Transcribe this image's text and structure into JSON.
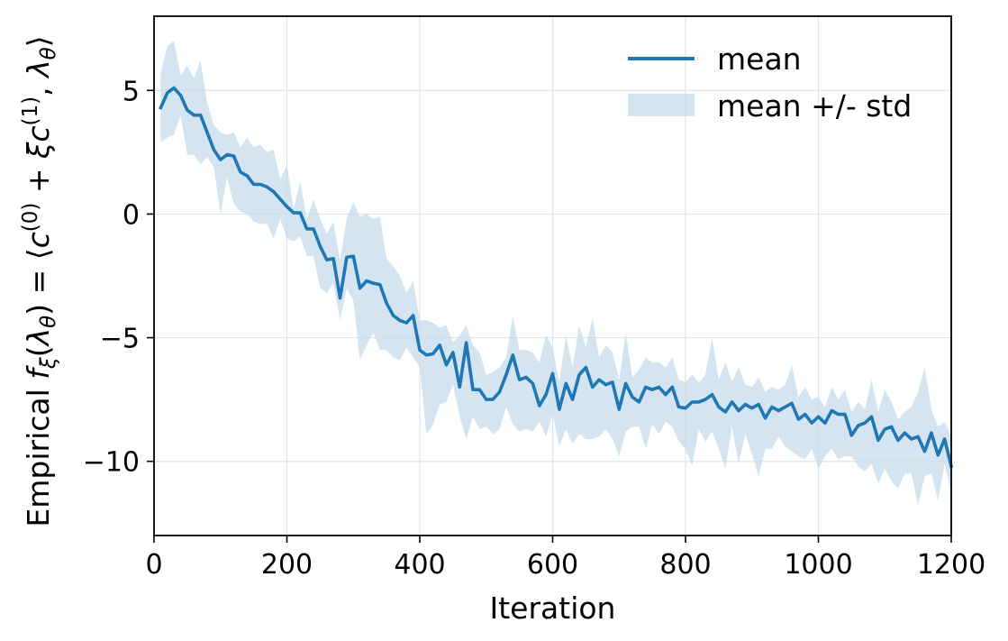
{
  "chart_data": {
    "type": "line",
    "title": "",
    "xlabel": "Iteration",
    "ylabel_parts": {
      "prefix": "Empirical ",
      "f": "f",
      "f_sub": "ξ",
      "paren_open": "(",
      "lambda": "λ",
      "lambda_sub": "θ",
      "paren_close": ") = ⟨",
      "c0": "c",
      "c0_sup": "(0)",
      "plus": " + ",
      "xi": "ξ",
      "c1": "c",
      "c1_sup": "(1)",
      "comma": ", ",
      "lambda2": "λ",
      "lambda2_sub": "θ",
      "close": "⟩"
    },
    "xlim": [
      0,
      1200
    ],
    "ylim": [
      -13,
      8
    ],
    "xticks": [
      0,
      200,
      400,
      600,
      800,
      1000,
      1200
    ],
    "xtick_labels": [
      "0",
      "200",
      "400",
      "600",
      "800",
      "1000",
      "1200"
    ],
    "yticks": [
      5,
      0,
      -5,
      -10
    ],
    "ytick_labels": [
      "5",
      "0",
      "−5",
      "−10"
    ],
    "grid": true,
    "legend_position": "top-right",
    "color": "#1f77b4",
    "band_color": "#c6dcec",
    "series": [
      {
        "name": "mean",
        "x": [
          10,
          20,
          30,
          40,
          50,
          60,
          70,
          80,
          90,
          100,
          110,
          120,
          130,
          140,
          150,
          160,
          170,
          180,
          190,
          200,
          210,
          220,
          230,
          240,
          250,
          260,
          270,
          280,
          290,
          300,
          310,
          320,
          330,
          340,
          350,
          360,
          370,
          380,
          390,
          400,
          410,
          420,
          430,
          440,
          450,
          460,
          470,
          480,
          490,
          500,
          510,
          520,
          530,
          540,
          550,
          560,
          570,
          580,
          590,
          600,
          610,
          620,
          630,
          640,
          650,
          660,
          670,
          680,
          690,
          700,
          710,
          720,
          730,
          740,
          750,
          760,
          770,
          780,
          790,
          800,
          810,
          820,
          830,
          840,
          850,
          860,
          870,
          880,
          890,
          900,
          910,
          920,
          930,
          940,
          950,
          960,
          970,
          980,
          990,
          1000,
          1010,
          1020,
          1030,
          1040,
          1050,
          1060,
          1070,
          1080,
          1090,
          1100,
          1110,
          1120,
          1130,
          1140,
          1150,
          1160,
          1170,
          1180,
          1190,
          1200
        ],
        "values": [
          4.3,
          4.9,
          5.1,
          4.8,
          4.2,
          4.0,
          4.0,
          3.3,
          2.6,
          2.2,
          2.4,
          2.35,
          1.7,
          1.55,
          1.2,
          1.2,
          1.1,
          0.9,
          0.6,
          0.3,
          0.05,
          0.05,
          -0.6,
          -0.6,
          -1.3,
          -1.85,
          -1.8,
          -3.4,
          -1.75,
          -1.7,
          -3.0,
          -2.7,
          -2.8,
          -2.85,
          -3.6,
          -4.1,
          -4.3,
          -4.4,
          -4.1,
          -5.5,
          -5.7,
          -5.65,
          -5.3,
          -6.1,
          -5.6,
          -7.0,
          -5.2,
          -7.1,
          -7.1,
          -7.5,
          -7.5,
          -7.2,
          -6.5,
          -5.7,
          -6.7,
          -6.6,
          -6.85,
          -7.75,
          -7.3,
          -6.45,
          -7.9,
          -6.85,
          -7.5,
          -6.5,
          -6.2,
          -7.0,
          -6.7,
          -6.9,
          -6.8,
          -7.9,
          -6.85,
          -7.4,
          -7.6,
          -7.0,
          -7.1,
          -7.0,
          -7.3,
          -7.0,
          -7.8,
          -7.85,
          -7.6,
          -7.6,
          -7.5,
          -7.3,
          -7.8,
          -8.0,
          -7.6,
          -7.95,
          -7.7,
          -7.85,
          -7.7,
          -8.25,
          -7.8,
          -7.95,
          -7.8,
          -7.65,
          -8.3,
          -8.1,
          -8.45,
          -8.2,
          -8.45,
          -7.95,
          -8.1,
          -8.1,
          -8.95,
          -8.55,
          -8.45,
          -8.2,
          -9.15,
          -8.7,
          -8.6,
          -9.15,
          -8.85,
          -9.1,
          -9.0,
          -9.6,
          -8.85,
          -9.75,
          -9.1,
          -10.2
        ]
      },
      {
        "name": "mean +/- std",
        "x": [
          10,
          20,
          30,
          40,
          50,
          60,
          70,
          80,
          90,
          100,
          110,
          120,
          130,
          140,
          150,
          160,
          170,
          180,
          190,
          200,
          210,
          220,
          230,
          240,
          250,
          260,
          270,
          280,
          290,
          300,
          310,
          320,
          330,
          340,
          350,
          360,
          370,
          380,
          390,
          400,
          410,
          420,
          430,
          440,
          450,
          460,
          470,
          480,
          490,
          500,
          510,
          520,
          530,
          540,
          550,
          560,
          570,
          580,
          590,
          600,
          610,
          620,
          630,
          640,
          650,
          660,
          670,
          680,
          690,
          700,
          710,
          720,
          730,
          740,
          750,
          760,
          770,
          780,
          790,
          800,
          810,
          820,
          830,
          840,
          850,
          860,
          870,
          880,
          890,
          900,
          910,
          920,
          930,
          940,
          950,
          960,
          970,
          980,
          990,
          1000,
          1010,
          1020,
          1030,
          1040,
          1050,
          1060,
          1070,
          1080,
          1090,
          1100,
          1110,
          1120,
          1130,
          1140,
          1150,
          1160,
          1170,
          1180,
          1190,
          1200
        ],
        "upper": [
          5.7,
          6.8,
          7.0,
          5.6,
          6.0,
          5.5,
          6.2,
          4.5,
          3.6,
          3.3,
          3.2,
          3.3,
          2.7,
          3.1,
          2.7,
          2.8,
          2.5,
          2.6,
          1.4,
          2.0,
          0.2,
          1.3,
          -0.2,
          0.6,
          -0.2,
          -0.8,
          -0.3,
          -1.9,
          -0.2,
          0.5,
          -0.1,
          0.0,
          -0.2,
          -0.1,
          -1.8,
          -2.1,
          -2.5,
          -3.2,
          -2.7,
          -4.3,
          -4.3,
          -4.4,
          -4.6,
          -4.5,
          -5.2,
          -4.9,
          -4.5,
          -5.3,
          -5.6,
          -6.5,
          -6.4,
          -6.2,
          -5.8,
          -4.1,
          -5.5,
          -5.5,
          -5.6,
          -6.0,
          -4.9,
          -5.4,
          -6.8,
          -4.9,
          -6.2,
          -4.5,
          -5.4,
          -4.2,
          -5.8,
          -5.3,
          -5.6,
          -6.7,
          -4.8,
          -6.6,
          -6.3,
          -5.8,
          -6.0,
          -6.0,
          -6.2,
          -5.8,
          -6.7,
          -6.8,
          -6.5,
          -6.8,
          -6.5,
          -5.0,
          -6.7,
          -6.0,
          -6.8,
          -6.2,
          -6.9,
          -7.0,
          -6.6,
          -7.2,
          -7.0,
          -7.1,
          -6.9,
          -6.1,
          -7.4,
          -7.0,
          -7.5,
          -7.4,
          -7.8,
          -7.0,
          -7.5,
          -7.1,
          -8.0,
          -7.6,
          -7.9,
          -6.7,
          -8.0,
          -7.1,
          -7.6,
          -8.3,
          -8.0,
          -7.8,
          -7.2,
          -6.2,
          -7.9,
          -8.6,
          -8.4,
          -9.0
        ],
        "lower": [
          2.9,
          3.1,
          3.2,
          4.0,
          2.4,
          2.4,
          2.0,
          2.3,
          1.9,
          0.0,
          1.5,
          0.4,
          0.1,
          0.0,
          -0.3,
          -0.4,
          -0.4,
          -1.0,
          -0.2,
          -1.0,
          -1.1,
          -0.9,
          -1.7,
          -1.7,
          -3.0,
          -3.2,
          -2.8,
          -4.3,
          -3.0,
          -3.5,
          -5.9,
          -5.3,
          -4.8,
          -5.5,
          -5.5,
          -5.8,
          -5.9,
          -5.4,
          -5.8,
          -6.2,
          -8.9,
          -8.5,
          -7.7,
          -7.6,
          -6.9,
          -8.2,
          -9.1,
          -8.2,
          -8.7,
          -8.6,
          -8.9,
          -8.7,
          -7.8,
          -8.5,
          -8.8,
          -8.7,
          -8.8,
          -8.4,
          -9.0,
          -8.1,
          -9.4,
          -8.7,
          -9.3,
          -8.9,
          -9.1,
          -9.1,
          -9.0,
          -8.7,
          -9.1,
          -9.8,
          -8.8,
          -8.6,
          -8.6,
          -9.5,
          -8.5,
          -8.9,
          -8.4,
          -8.6,
          -9.2,
          -9.5,
          -10.2,
          -8.7,
          -9.2,
          -8.8,
          -9.5,
          -10.3,
          -8.6,
          -10.1,
          -8.9,
          -9.7,
          -10.6,
          -9.5,
          -9.5,
          -9.0,
          -9.4,
          -9.6,
          -9.8,
          -9.9,
          -9.5,
          -10.3,
          -9.8,
          -9.5,
          -9.9,
          -9.8,
          -9.8,
          -10.2,
          -10.4,
          -10.1,
          -10.9,
          -10.3,
          -10.8,
          -11.1,
          -10.5,
          -10.5,
          -11.8,
          -10.6,
          -10.5,
          -11.6,
          -10.1,
          -11.3
        ]
      }
    ],
    "legend": {
      "entries": [
        "mean",
        "mean +/- std"
      ]
    }
  }
}
